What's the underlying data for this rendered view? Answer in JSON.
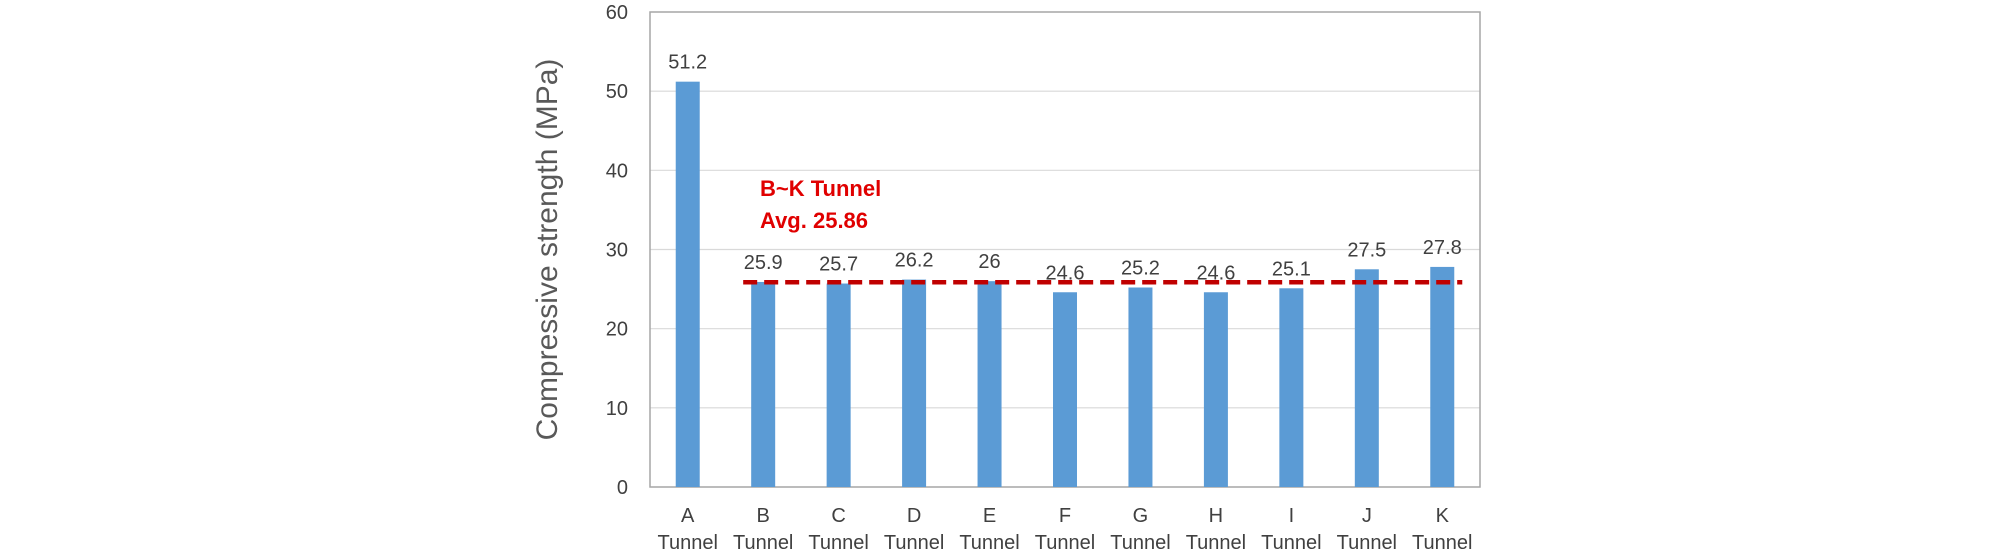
{
  "chart_data": {
    "type": "bar",
    "categories": [
      "A",
      "B",
      "C",
      "D",
      "E",
      "F",
      "G",
      "H",
      "I",
      "J",
      "K"
    ],
    "category_suffix": "Tunnel",
    "values": [
      51.2,
      25.9,
      25.7,
      26.2,
      26,
      24.6,
      25.2,
      24.6,
      25.1,
      27.5,
      27.8
    ],
    "data_labels": [
      "51.2",
      "25.9",
      "25.7",
      "26.2",
      "26",
      "24.6",
      "25.2",
      "24.6",
      "25.1",
      "27.5",
      "27.8"
    ],
    "title": "",
    "xlabel": "",
    "ylabel": "Compressive strength (MPa)",
    "ylim": [
      0,
      60
    ],
    "yticks": [
      0,
      10,
      20,
      30,
      40,
      50,
      60
    ],
    "grid": true,
    "bar_color": "#5B9BD5",
    "reference_line": {
      "value": 25.86,
      "from_category": "B",
      "to_category": "K",
      "style": "dashed",
      "color": "#C00000"
    },
    "annotation": {
      "line1": "B~K Tunnel",
      "line2": "Avg. 25.86",
      "color": "#E00000"
    }
  }
}
